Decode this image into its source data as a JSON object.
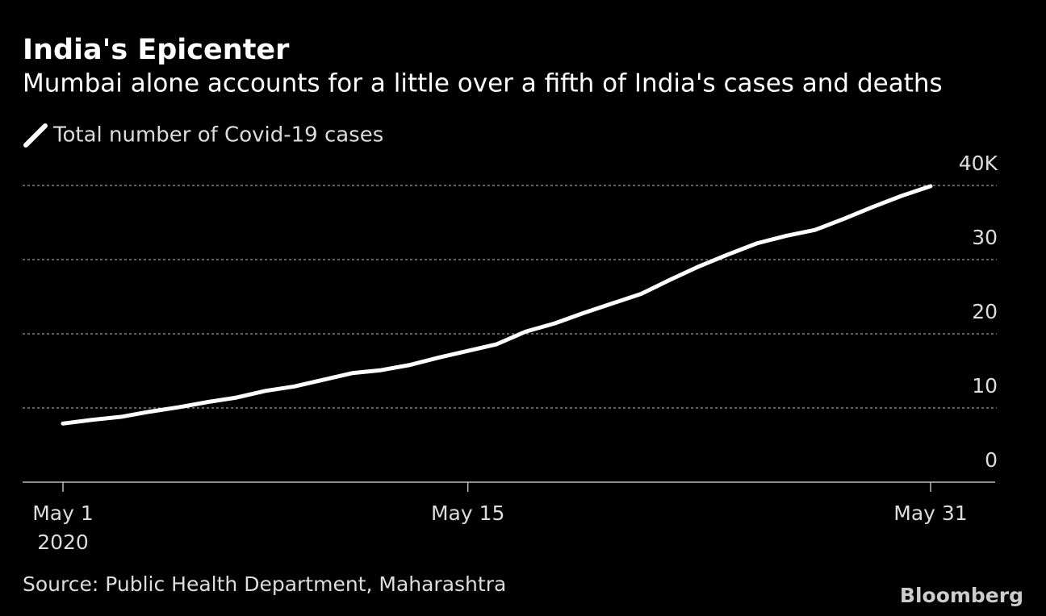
{
  "chart_data": {
    "type": "line",
    "title": "India's Epicenter",
    "subtitle": "Mumbai alone accounts for a little over a fifth of India's cases and deaths",
    "x": [
      "2020-05-01",
      "2020-05-02",
      "2020-05-03",
      "2020-05-04",
      "2020-05-05",
      "2020-05-06",
      "2020-05-07",
      "2020-05-08",
      "2020-05-09",
      "2020-05-10",
      "2020-05-11",
      "2020-05-12",
      "2020-05-13",
      "2020-05-14",
      "2020-05-15",
      "2020-05-16",
      "2020-05-17",
      "2020-05-18",
      "2020-05-19",
      "2020-05-20",
      "2020-05-21",
      "2020-05-22",
      "2020-05-23",
      "2020-05-24",
      "2020-05-25",
      "2020-05-26",
      "2020-05-27",
      "2020-05-28",
      "2020-05-29",
      "2020-05-30",
      "2020-05-31"
    ],
    "series": [
      {
        "name": "Total number of Covid-19 cases",
        "color": "#ffffff",
        "values": [
          7.9,
          8.4,
          8.8,
          9.5,
          10.1,
          10.8,
          11.4,
          12.3,
          12.9,
          13.8,
          14.7,
          15.1,
          15.8,
          16.8,
          17.7,
          18.6,
          20.3,
          21.4,
          22.8,
          24.1,
          25.4,
          27.3,
          29.1,
          30.7,
          32.2,
          33.2,
          34.0,
          35.5,
          37.1,
          38.6,
          39.9
        ]
      }
    ],
    "xlim": [
      "2020-05-01",
      "2020-05-31"
    ],
    "xticks": [
      {
        "value": "2020-05-01",
        "label": "May 1"
      },
      {
        "value": "2020-05-15",
        "label": "May 15"
      },
      {
        "value": "2020-05-31",
        "label": "May 31"
      }
    ],
    "x_year_label": "2020",
    "ylim": [
      0,
      40
    ],
    "yticks": [
      0,
      10,
      20,
      30,
      {
        "value": 40,
        "label": "40K"
      }
    ],
    "grid": true,
    "source": "Source: Public Health Department, Maharashtra",
    "brand": "Bloomberg"
  }
}
